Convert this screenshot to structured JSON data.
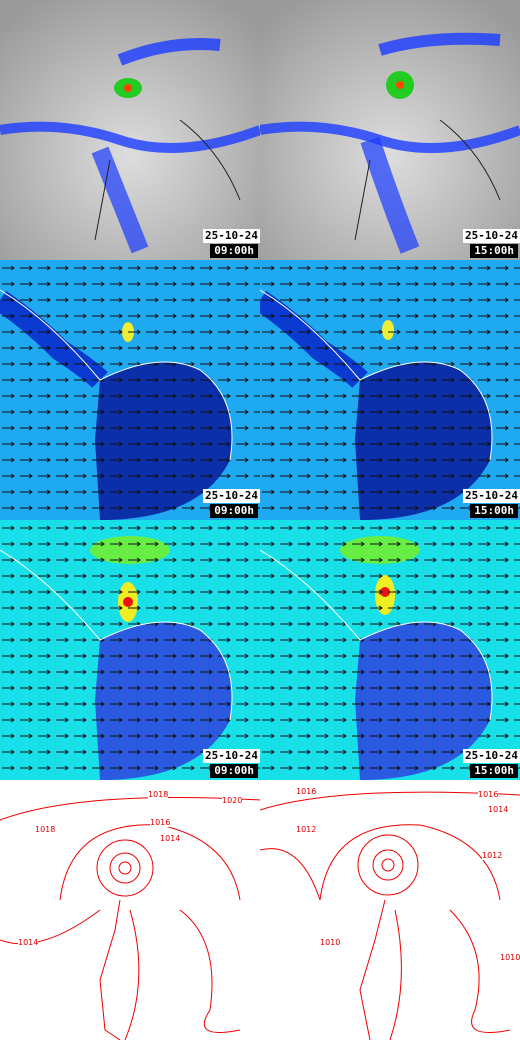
{
  "panels": [
    {
      "date": "25-10-24",
      "time": "09:00h"
    },
    {
      "date": "25-10-24",
      "time": "15:00h"
    },
    {
      "date": "25-10-24",
      "time": "09:00h"
    },
    {
      "date": "25-10-24",
      "time": "15:00h"
    },
    {
      "date": "25-10-24",
      "time": "09:00h"
    },
    {
      "date": "25-10-24",
      "time": "15:00h"
    }
  ],
  "isobars": {
    "left": [
      "1018",
      "1020",
      "1018",
      "1016",
      "1014",
      "1014"
    ],
    "right": [
      "1016",
      "1016",
      "1014",
      "1012",
      "1012",
      "1010",
      "1010"
    ]
  }
}
